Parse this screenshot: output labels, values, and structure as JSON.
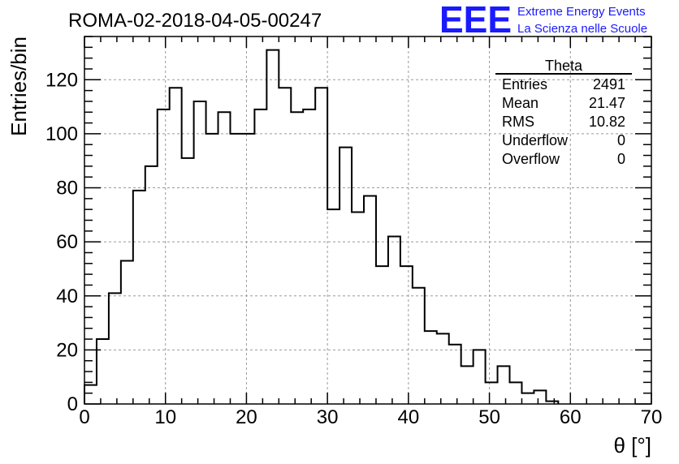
{
  "header": {
    "run_title": "ROMA-02-2018-04-05-00247",
    "logo_mark": "EEE",
    "logo_line1": "Extreme Energy Events",
    "logo_line2": "La Scienza nelle Scuole"
  },
  "stats_box": {
    "name": "Theta",
    "rows": [
      {
        "label": "Entries",
        "value": "2491"
      },
      {
        "label": "Mean",
        "value": "21.47"
      },
      {
        "label": "RMS",
        "value": "10.82"
      },
      {
        "label": "Underflow",
        "value": "0"
      },
      {
        "label": "Overflow",
        "value": "0"
      }
    ]
  },
  "colors": {
    "line": "#000000",
    "grid": "#999999",
    "logo": "#1a1aff"
  },
  "chart_data": {
    "type": "bar",
    "histogram": true,
    "title": "",
    "xlabel": "θ [°]",
    "ylabel": "Entries/bin",
    "xlim": [
      0,
      70
    ],
    "ylim": [
      0,
      136
    ],
    "grid": true,
    "bin_width": 1.5,
    "bin_edges_start": 0,
    "values": [
      7,
      24,
      41,
      53,
      79,
      88,
      109,
      117,
      91,
      112,
      100,
      108,
      100,
      100,
      109,
      131,
      117,
      108,
      109,
      117,
      72,
      95,
      71,
      77,
      51,
      62,
      51,
      43,
      27,
      26,
      22,
      14,
      20,
      8,
      14,
      8,
      4,
      5,
      1
    ],
    "x_ticks": [
      0,
      10,
      20,
      30,
      40,
      50,
      60,
      70
    ],
    "y_ticks": [
      0,
      20,
      40,
      60,
      80,
      100,
      120
    ]
  }
}
